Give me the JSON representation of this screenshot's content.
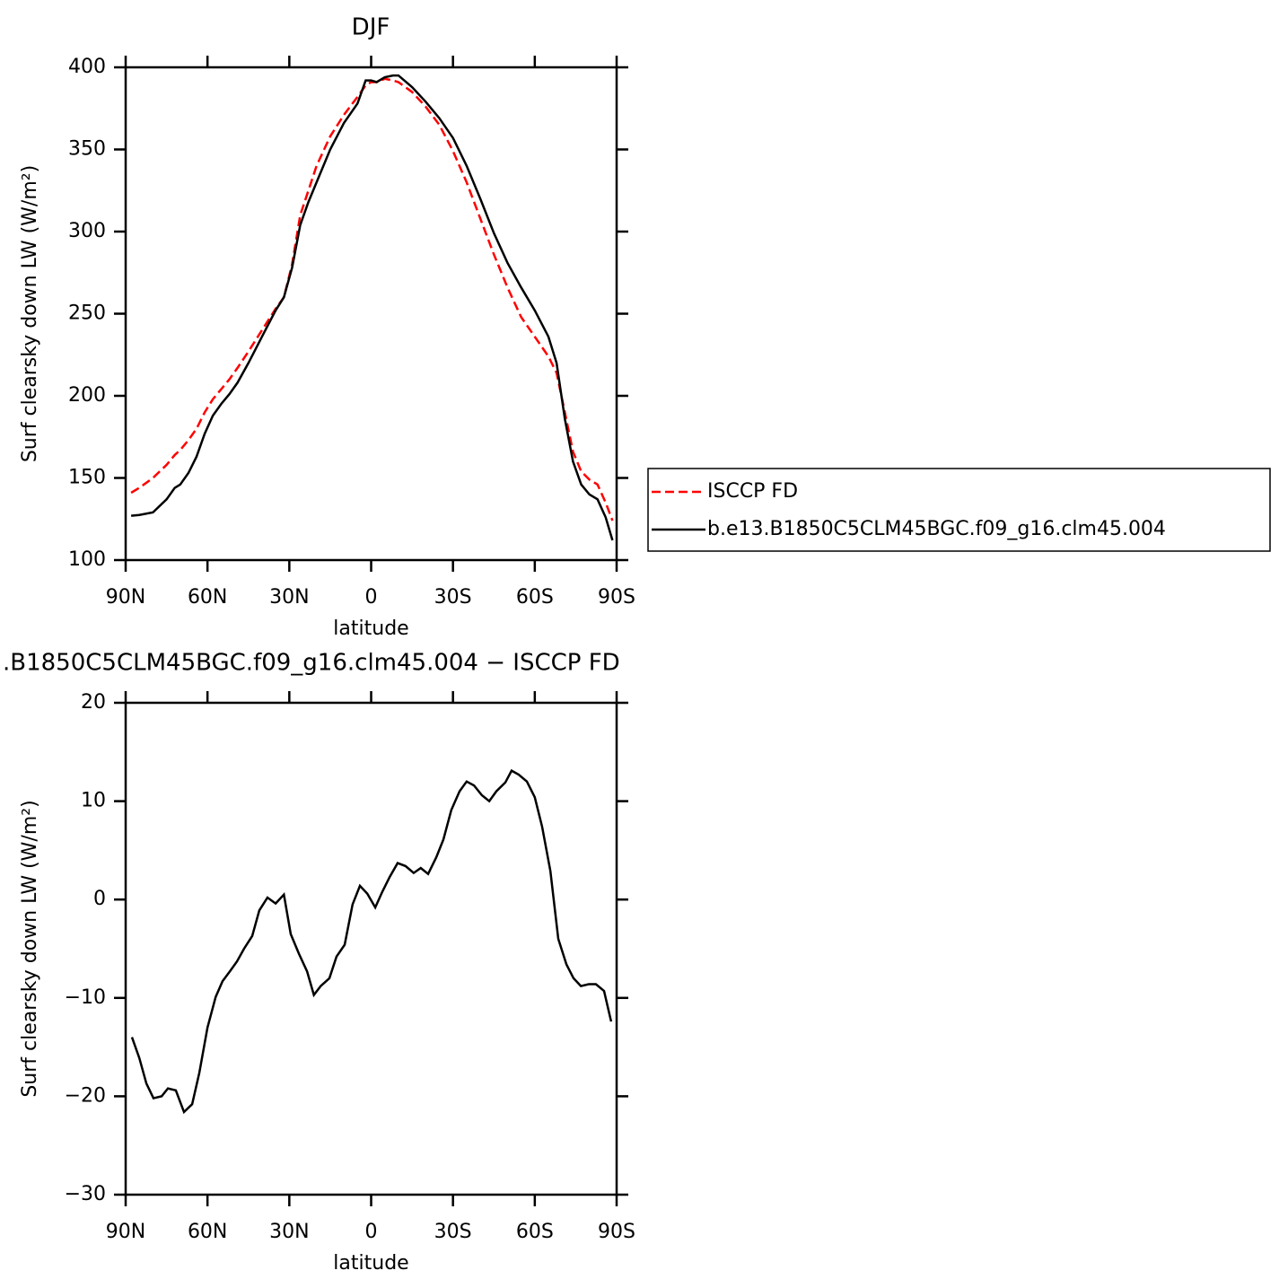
{
  "chart_data": [
    {
      "type": "line",
      "title": "DJF",
      "xlabel": "latitude",
      "ylabel": "Surf clearsky down LW (W/m²)",
      "x": [
        88,
        85,
        80,
        75,
        72,
        70,
        67,
        64,
        61,
        58,
        55,
        52,
        49,
        45,
        40,
        35,
        32,
        29,
        26,
        23,
        20,
        15,
        10,
        5,
        2,
        0,
        -2,
        -5,
        -8,
        -10,
        -15,
        -20,
        -25,
        -30,
        -35,
        -40,
        -45,
        -50,
        -55,
        -60,
        -65,
        -68,
        -71,
        -74,
        -77,
        -80,
        -83,
        -86,
        -88.5
      ],
      "series": [
        {
          "name": "ISCCP FD",
          "color": "#ff0000",
          "dash": true,
          "values": [
            141,
            144,
            150,
            158,
            164,
            167,
            173,
            180,
            190,
            198,
            204,
            210,
            217,
            227,
            240,
            253,
            260,
            280,
            310,
            325,
            340,
            358,
            371,
            382,
            389,
            391,
            391,
            393,
            392,
            391,
            385,
            376,
            365,
            349,
            330,
            308,
            286,
            266,
            248,
            236,
            224,
            214,
            190,
            166,
            154,
            149,
            146,
            135,
            124
          ]
        },
        {
          "name": "b.e13.B1850C5CLM45BGC.f09_g16.clm45.004",
          "color": "#000000",
          "dash": false,
          "values": [
            127,
            127.5,
            129,
            137,
            144,
            146,
            153,
            163,
            177,
            188,
            195,
            201,
            208,
            220,
            236,
            252,
            260,
            278,
            304,
            318,
            330,
            350,
            366,
            378,
            392,
            392,
            391,
            394,
            395,
            395,
            388,
            379,
            369,
            357,
            340,
            320,
            299,
            281,
            266,
            252,
            236,
            220,
            186,
            160,
            146,
            140,
            137,
            126,
            112
          ]
        }
      ],
      "xlim": [
        90,
        -90
      ],
      "xticks": [
        {
          "value": 90,
          "label": "90N"
        },
        {
          "value": 60,
          "label": "60N"
        },
        {
          "value": 30,
          "label": "30N"
        },
        0,
        {
          "value": -30,
          "label": "30S"
        },
        {
          "value": -60,
          "label": "60S"
        },
        {
          "value": -90,
          "label": "90S"
        }
      ],
      "ylim": [
        100,
        400
      ],
      "yticks": [
        100,
        150,
        200,
        250,
        300,
        350,
        400
      ],
      "legend": "right"
    },
    {
      "type": "line",
      "title": ".B1850C5CLM45BGC.f09_g16.clm45.004 − ISCCP FD",
      "xlabel": "latitude",
      "ylabel": "Surf clearsky down LW (W/m²)",
      "x": [
        87.7,
        85,
        82.4,
        79.8,
        76.8,
        74.5,
        71.6,
        68.6,
        65.6,
        63,
        60,
        57,
        54.5,
        51.8,
        49.2,
        46.6,
        43.6,
        41,
        38,
        35,
        32,
        29.5,
        26.5,
        23.5,
        21,
        18.5,
        15.3,
        12.7,
        9.7,
        6.8,
        4.1,
        1.4,
        -1.5,
        -4.1,
        -6.8,
        -9.7,
        -12.6,
        -15.6,
        -18.2,
        -20.9,
        -23.9,
        -26.5,
        -29.4,
        -32.4,
        -35,
        -37.7,
        -40.6,
        -43.3,
        -45.9,
        -49.2,
        -51.5,
        -54.1,
        -57.1,
        -60,
        -62.7,
        -65.7,
        -68.6,
        -71.6,
        -74.2,
        -76.9,
        -79.8,
        -82.4,
        -85.4,
        -88
      ],
      "series": [
        {
          "color": "#000000",
          "dash": false,
          "values": [
            -14,
            -16.1,
            -18.7,
            -20.2,
            -20,
            -19.2,
            -19.4,
            -21.6,
            -20.8,
            -17.6,
            -13,
            -9.9,
            -8.3,
            -7.3,
            -6.3,
            -5,
            -3.7,
            -1.1,
            0.2,
            -0.4,
            0.5,
            -3.5,
            -5.5,
            -7.3,
            -9.7,
            -8.8,
            -8,
            -5.8,
            -4.6,
            -0.5,
            1.4,
            0.6,
            -0.8,
            0.8,
            2.3,
            3.7,
            3.4,
            2.7,
            3.2,
            2.6,
            4.3,
            6.1,
            9.1,
            11,
            12,
            11.6,
            10.6,
            10,
            11,
            11.9,
            13.1,
            12.7,
            12,
            10.4,
            7.4,
            2.9,
            -4,
            -6.6,
            -8,
            -8.8,
            -8.6,
            -8.6,
            -9.3,
            -12.4
          ]
        }
      ],
      "xlim": [
        90,
        -90
      ],
      "xticks": [
        {
          "value": 90,
          "label": "90N"
        },
        {
          "value": 60,
          "label": "60N"
        },
        {
          "value": 30,
          "label": "30N"
        },
        0,
        {
          "value": -30,
          "label": "30S"
        },
        {
          "value": -60,
          "label": "60S"
        },
        {
          "value": -90,
          "label": "90S"
        }
      ],
      "ylim": [
        -30,
        20
      ],
      "yticks": [
        {
          "value": -30,
          "label": "−30"
        },
        {
          "value": -20,
          "label": "−20"
        },
        {
          "value": -10,
          "label": "−10"
        },
        0,
        10,
        20
      ]
    }
  ]
}
